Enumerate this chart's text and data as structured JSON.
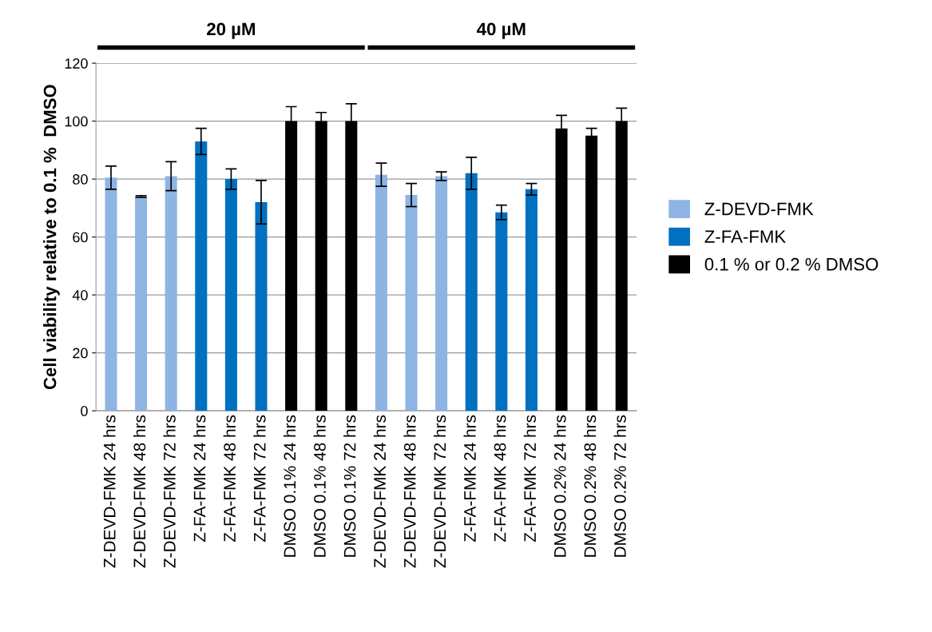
{
  "chart_data": {
    "type": "bar",
    "ylabel": "Cell viability relative to 0.1 %  DMSO",
    "categories": [
      "Z-DEVD-FMK 24 hrs",
      "Z-DEVD-FMK 48 hrs",
      "Z-DEVD-FMK 72 hrs",
      "Z-FA-FMK 24 hrs",
      "Z-FA-FMK 48 hrs",
      "Z-FA-FMK 72 hrs",
      "DMSO 0.1% 24 hrs",
      "DMSO 0.1% 48 hrs",
      "DMSO 0.1% 72 hrs",
      "Z-DEVD-FMK 24 hrs",
      "Z-DEVD-FMK 48 hrs",
      "Z-DEVD-FMK 72 hrs",
      "Z-FA-FMK 24 hrs",
      "Z-FA-FMK 48 hrs",
      "Z-FA-FMK 72 hrs",
      "DMSO 0.2% 24 hrs",
      "DMSO 0.2% 48 hrs",
      "DMSO 0.2% 72 hrs"
    ],
    "series": [
      {
        "name": "Z-DEVD-FMK",
        "color": "#8eb4e3",
        "values": [
          80.5,
          74,
          81,
          null,
          null,
          null,
          null,
          null,
          null,
          81.5,
          74.5,
          81,
          null,
          null,
          null,
          null,
          null,
          null
        ],
        "errors": [
          4,
          0.3,
          5,
          null,
          null,
          null,
          null,
          null,
          null,
          4,
          4,
          1.5,
          null,
          null,
          null,
          null,
          null,
          null
        ]
      },
      {
        "name": "Z-FA-FMK",
        "color": "#0070c0",
        "values": [
          null,
          null,
          null,
          93,
          80,
          72,
          null,
          null,
          null,
          null,
          null,
          null,
          82,
          68.5,
          76.5,
          null,
          null,
          null
        ],
        "errors": [
          null,
          null,
          null,
          4.5,
          3.5,
          7.5,
          null,
          null,
          null,
          null,
          null,
          null,
          5.5,
          2.5,
          2,
          null,
          null,
          null
        ]
      },
      {
        "name": "0.1 % or 0.2 % DMSO",
        "color": "#000000",
        "values": [
          null,
          null,
          null,
          null,
          null,
          null,
          100,
          100,
          100,
          null,
          null,
          null,
          null,
          null,
          null,
          97.5,
          95,
          100
        ],
        "errors": [
          null,
          null,
          null,
          null,
          null,
          null,
          5,
          3,
          6,
          null,
          null,
          null,
          null,
          null,
          null,
          4.5,
          2.5,
          4.5
        ]
      }
    ],
    "ylim": [
      0,
      120
    ],
    "yticks": [
      0,
      20,
      40,
      60,
      80,
      100,
      120
    ],
    "grid": "y",
    "legend": "right",
    "annotations": [
      "20 µM",
      "40 µM"
    ]
  }
}
